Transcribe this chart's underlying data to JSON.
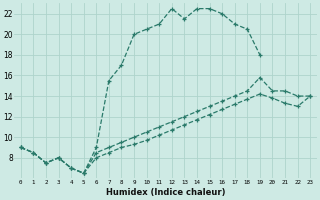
{
  "xlabel": "Humidex (Indice chaleur)",
  "bg_color": "#ceeae4",
  "grid_color": "#aed4cc",
  "line_color": "#2a7a6a",
  "xlim": [
    -0.5,
    23.5
  ],
  "ylim": [
    6,
    23
  ],
  "yticks": [
    8,
    10,
    12,
    14,
    16,
    18,
    20,
    22
  ],
  "xticks": [
    0,
    1,
    2,
    3,
    4,
    5,
    6,
    7,
    8,
    9,
    10,
    11,
    12,
    13,
    14,
    15,
    16,
    17,
    18,
    19,
    20,
    21,
    22,
    23
  ],
  "series": [
    {
      "x": [
        0,
        1,
        2,
        3,
        4,
        5,
        6,
        7,
        8,
        9,
        10,
        11,
        12,
        13,
        14,
        15,
        16,
        17,
        18,
        19
      ],
      "y": [
        9,
        8.5,
        7.5,
        8.0,
        7.0,
        6.5,
        9.0,
        15.5,
        17.0,
        20.0,
        20.5,
        21.0,
        22.5,
        21.5,
        22.5,
        22.5,
        22.0,
        21.0,
        20.5,
        18.0
      ]
    },
    {
      "x": [
        0,
        1,
        2,
        3,
        4,
        5,
        6,
        7,
        8,
        9,
        10,
        11,
        12,
        13,
        14,
        15,
        16,
        17,
        18,
        19,
        20,
        21,
        22,
        23
      ],
      "y": [
        9.0,
        8.5,
        7.5,
        8.0,
        7.0,
        6.5,
        8.5,
        9.0,
        9.5,
        10.0,
        10.5,
        11.0,
        11.5,
        12.0,
        12.5,
        13.0,
        13.5,
        14.0,
        14.5,
        15.8,
        14.5,
        14.5,
        14.0,
        14.0
      ]
    },
    {
      "x": [
        0,
        1,
        2,
        3,
        4,
        5,
        6,
        7,
        8,
        9,
        10,
        11,
        12,
        13,
        14,
        15,
        16,
        17,
        18,
        19,
        20,
        21,
        22,
        23
      ],
      "y": [
        9.0,
        8.5,
        7.5,
        8.0,
        7.0,
        6.5,
        8.0,
        8.5,
        9.0,
        9.3,
        9.7,
        10.2,
        10.7,
        11.2,
        11.7,
        12.2,
        12.7,
        13.2,
        13.7,
        14.2,
        13.8,
        13.3,
        13.0,
        14.0
      ]
    }
  ]
}
